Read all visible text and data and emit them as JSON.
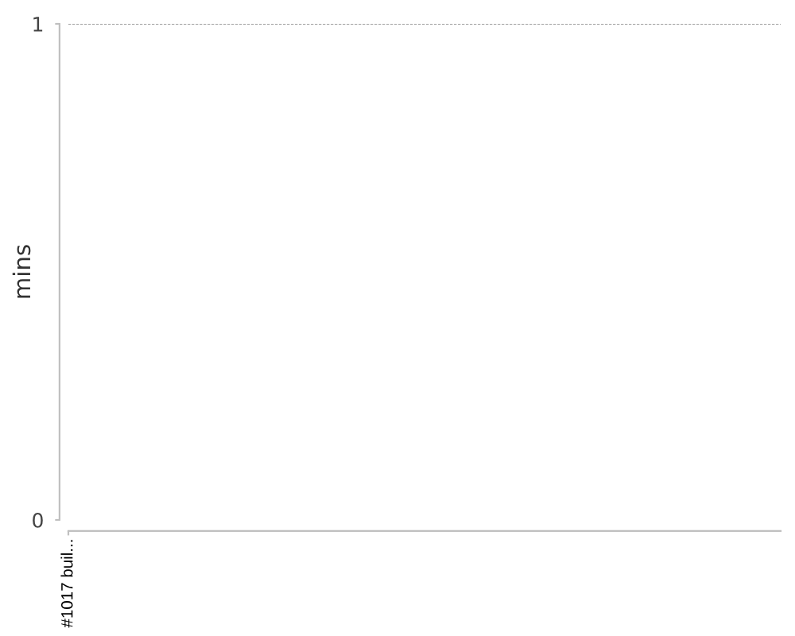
{
  "chart_data": {
    "type": "area",
    "ylabel": "mins",
    "categories": [
      "#1017 buil..."
    ],
    "ylim": [
      0,
      1
    ],
    "yticks": [
      0,
      1
    ],
    "grid": "y"
  }
}
